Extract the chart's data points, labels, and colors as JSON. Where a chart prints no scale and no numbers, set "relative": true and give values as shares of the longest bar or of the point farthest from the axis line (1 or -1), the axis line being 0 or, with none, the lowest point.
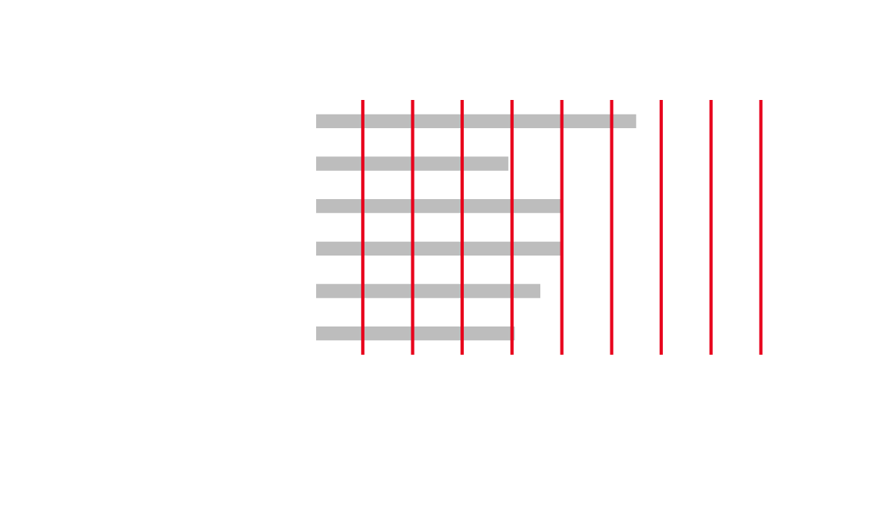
{
  "chart_data": {
    "type": "bar",
    "orientation": "horizontal",
    "relative": true,
    "categories": [
      null,
      null,
      null,
      null,
      null,
      null
    ],
    "values": [
      1,
      0.6,
      0.77,
      0.77,
      0.7,
      0.62
    ],
    "color": "#bdbdbd",
    "legend": false,
    "ref_lines": [
      {
        "axis": "x",
        "value": 0.146,
        "color": "#e8001c"
      },
      {
        "axis": "x",
        "value": 0.302,
        "color": "#e8001c"
      },
      {
        "axis": "x",
        "value": 0.457,
        "color": "#e8001c"
      },
      {
        "axis": "x",
        "value": 0.613,
        "color": "#e8001c"
      },
      {
        "axis": "x",
        "value": 0.769,
        "color": "#e8001c"
      },
      {
        "axis": "x",
        "value": 0.925,
        "color": "#e8001c"
      },
      {
        "axis": "x",
        "value": 1.08,
        "color": "#e8001c"
      },
      {
        "axis": "x",
        "value": 1.236,
        "color": "#e8001c"
      },
      {
        "axis": "x",
        "value": 1.392,
        "color": "#e8001c"
      }
    ]
  }
}
